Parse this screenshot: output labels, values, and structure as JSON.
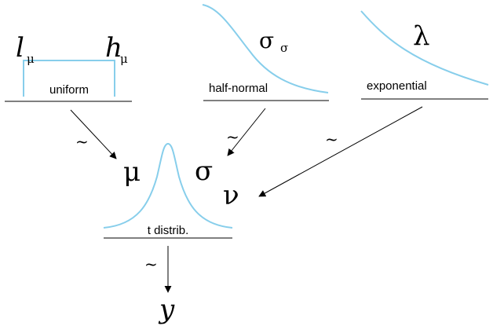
{
  "priors": {
    "uniform": {
      "label": "uniform",
      "low_symbol": "l",
      "low_subscript": "μ",
      "high_symbol": "h",
      "high_subscript": "μ"
    },
    "half_normal": {
      "label": "half-normal",
      "param_symbol": "σ",
      "param_subscript": "σ"
    },
    "exponential": {
      "label": "exponential",
      "param_symbol": "λ"
    }
  },
  "likelihood": {
    "label": "t distrib.",
    "mu": "μ",
    "sigma": "σ",
    "nu": "ν"
  },
  "observed": "y",
  "relation_symbol": "~",
  "colors": {
    "curve": "#87CEEB",
    "ink": "#000000"
  }
}
